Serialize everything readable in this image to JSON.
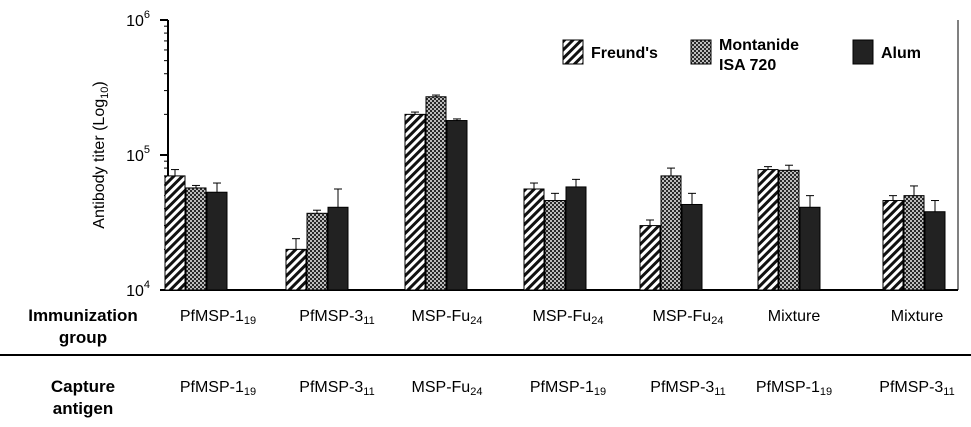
{
  "chart_data": {
    "type": "bar",
    "ylabel": "Antibody titer (Log",
    "ylabel_sub": "10",
    "ylabel_end": ")",
    "yscale": "log",
    "ylim": [
      10000,
      1000000
    ],
    "yticks": [
      {
        "value": 10000,
        "base": "10",
        "exp": "4"
      },
      {
        "value": 100000,
        "base": "10",
        "exp": "5"
      },
      {
        "value": 1000000,
        "base": "10",
        "exp": "6"
      }
    ],
    "legend_position": "top-right",
    "series": [
      {
        "name": "Freund's",
        "pattern": "diagonal-stripes",
        "values": [
          70000,
          20000,
          200000,
          56000,
          30000,
          78000,
          46000
        ],
        "errors": [
          8000,
          4000,
          8000,
          6000,
          3000,
          4000,
          4000
        ]
      },
      {
        "name": "Montanide ISA 720",
        "name_lines": [
          "Montanide",
          "ISA 720"
        ],
        "pattern": "checkered",
        "values": [
          57000,
          37000,
          270000,
          46000,
          70000,
          77000,
          50000
        ],
        "errors": [
          2500,
          2000,
          8000,
          6000,
          10000,
          7000,
          9000
        ]
      },
      {
        "name": "Alum",
        "pattern": "solid-dark",
        "values": [
          53000,
          41000,
          180000,
          58000,
          43000,
          41000,
          38000
        ],
        "errors": [
          9000,
          15000,
          5000,
          8000,
          9000,
          9000,
          8000
        ]
      }
    ],
    "categories": [
      {
        "immunization": {
          "text": "PfMSP-1",
          "sub": "19"
        },
        "capture": {
          "text": "PfMSP-1",
          "sub": "19"
        }
      },
      {
        "immunization": {
          "text": "PfMSP-3",
          "sub": "11"
        },
        "capture": {
          "text": "PfMSP-3",
          "sub": "11"
        }
      },
      {
        "immunization": {
          "text": "MSP-Fu",
          "sub": "24"
        },
        "capture": {
          "text": "MSP-Fu",
          "sub": "24"
        }
      },
      {
        "immunization": {
          "text": "MSP-Fu",
          "sub": "24"
        },
        "capture": {
          "text": "PfMSP-1",
          "sub": "19"
        }
      },
      {
        "immunization": {
          "text": "MSP-Fu",
          "sub": "24"
        },
        "capture": {
          "text": "PfMSP-3",
          "sub": "11"
        }
      },
      {
        "immunization": {
          "text": "Mixture",
          "sub": ""
        },
        "capture": {
          "text": "PfMSP-1",
          "sub": "19"
        }
      },
      {
        "immunization": {
          "text": "Mixture",
          "sub": ""
        },
        "capture": {
          "text": "PfMSP-3",
          "sub": "11"
        }
      }
    ]
  },
  "rows": {
    "immunization_head": [
      "Immunization",
      "group"
    ],
    "capture_head": [
      "Capture",
      "antigen"
    ]
  },
  "colors": {
    "alum": "#222222",
    "axis": "#000000"
  }
}
